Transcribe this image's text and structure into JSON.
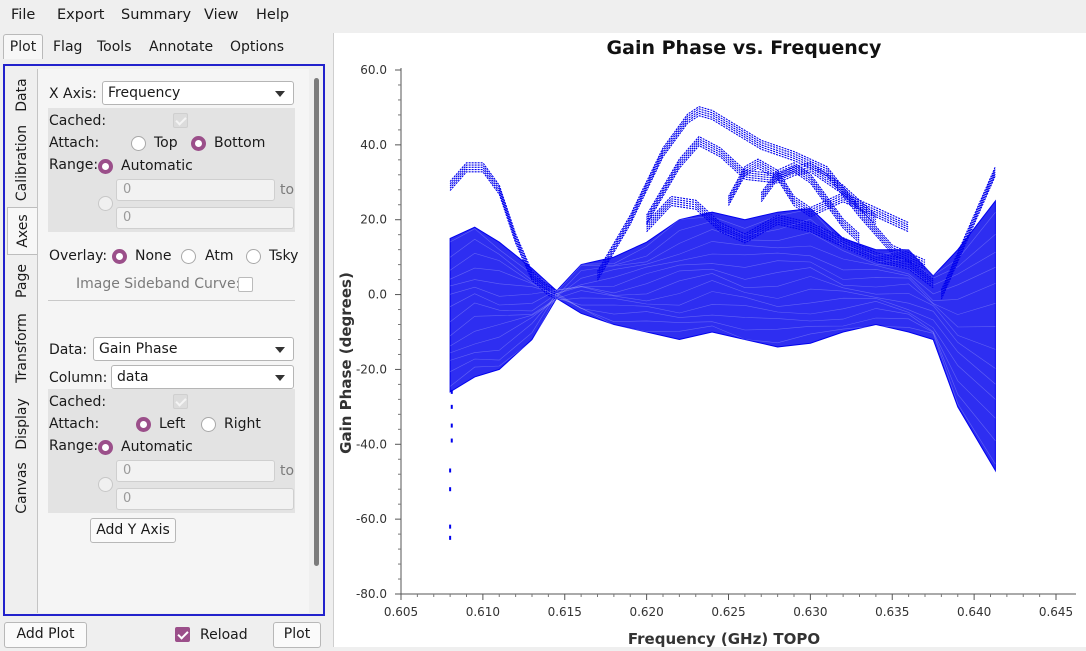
{
  "menubar": {
    "items": [
      "File",
      "Export",
      "Summary",
      "View",
      "Help"
    ]
  },
  "toptabs": [
    "Plot",
    "Flag",
    "Tools",
    "Annotate",
    "Options"
  ],
  "vtabs": [
    "Data",
    "Calibration",
    "Axes",
    "Page",
    "Transform",
    "Display",
    "Canvas"
  ],
  "xaxis": {
    "label": "X Axis:",
    "value": "Frequency",
    "cached": "Cached:",
    "attach": "Attach:",
    "top": "Top",
    "bottom": "Bottom",
    "range": "Range:",
    "automatic": "Automatic",
    "min": "0",
    "max": "0",
    "to": "to"
  },
  "overlay": {
    "label": "Overlay:",
    "none": "None",
    "atm": "Atm",
    "tsky": "Tsky",
    "sideband": "Image Sideband Curve:"
  },
  "yaxis": {
    "data_label": "Data:",
    "data_value": "Gain Phase",
    "column_label": "Column:",
    "column_value": "data",
    "cached": "Cached:",
    "attach": "Attach:",
    "left": "Left",
    "right": "Right",
    "range": "Range:",
    "automatic": "Automatic",
    "min": "0",
    "max": "0",
    "to": "to",
    "add_button": "Add Y Axis"
  },
  "bottom": {
    "add_plot": "Add Plot",
    "reload": "Reload",
    "plot": "Plot"
  },
  "chart_data": {
    "type": "scatter",
    "title": "Gain Phase vs. Frequency",
    "xlabel": "Frequency (GHz) TOPO",
    "ylabel": "Gain Phase (degrees)",
    "xlim": [
      0.605,
      0.645
    ],
    "ylim": [
      -80,
      60
    ],
    "xticks": [
      "0.605",
      "0.610",
      "0.615",
      "0.620",
      "0.625",
      "0.630",
      "0.635",
      "0.640",
      "0.645"
    ],
    "yticks": [
      "60.0",
      "40.0",
      "20.0",
      "0.0",
      "-20.0",
      "-40.0",
      "-60.0",
      "-80.0"
    ],
    "color": "#0000ee",
    "envelope": {
      "x": [
        0.608,
        0.6095,
        0.611,
        0.613,
        0.6145,
        0.616,
        0.618,
        0.62,
        0.622,
        0.624,
        0.626,
        0.628,
        0.63,
        0.632,
        0.634,
        0.636,
        0.6375,
        0.639,
        0.6413
      ],
      "upper": [
        15,
        18,
        14,
        7,
        1,
        8,
        10,
        14,
        20,
        22,
        20,
        22,
        23,
        15,
        12,
        12,
        5,
        12,
        25
      ],
      "lower": [
        -26,
        -22,
        -20,
        -12,
        -1,
        -5,
        -8,
        -10,
        -12,
        -10,
        -12,
        -14,
        -13,
        -10,
        -8,
        -10,
        -12,
        -30,
        -47
      ]
    },
    "traces": [
      {
        "x": [
          0.608,
          0.609,
          0.61,
          0.611,
          0.612,
          0.613,
          0.614,
          0.6145
        ],
        "y": [
          29,
          34,
          34,
          28,
          15,
          5,
          1,
          0
        ]
      },
      {
        "x": [
          0.617,
          0.619,
          0.621,
          0.6225,
          0.6232,
          0.624,
          0.6255,
          0.627,
          0.629,
          0.631,
          0.633,
          0.635,
          0.637
        ],
        "y": [
          5,
          20,
          38,
          47,
          49,
          48,
          44,
          40,
          37,
          33,
          22,
          12,
          8
        ]
      },
      {
        "x": [
          0.62,
          0.622,
          0.6232,
          0.6245,
          0.626,
          0.628,
          0.629,
          0.63,
          0.632,
          0.634
        ],
        "y": [
          20,
          35,
          41,
          38,
          32,
          31,
          33,
          34,
          28,
          20
        ]
      },
      {
        "x": [
          0.625,
          0.626,
          0.6268,
          0.628,
          0.629,
          0.63,
          0.632,
          0.634,
          0.636
        ],
        "y": [
          25,
          33,
          35,
          32,
          25,
          22,
          26,
          22,
          18
        ]
      },
      {
        "x": [
          0.627,
          0.628,
          0.629,
          0.63,
          0.631,
          0.632,
          0.633
        ],
        "y": [
          26,
          32,
          34,
          31,
          25,
          19,
          15
        ]
      },
      {
        "x": [
          0.62,
          0.6215,
          0.623,
          0.6245,
          0.626,
          0.628,
          0.63,
          0.632,
          0.634,
          0.636,
          0.6375
        ],
        "y": [
          18,
          25,
          24,
          18,
          15,
          20,
          18,
          14,
          10,
          8,
          3
        ]
      },
      {
        "x": [
          0.638,
          0.639,
          0.64,
          0.6413
        ],
        "y": [
          0,
          10,
          20,
          33
        ]
      }
    ],
    "outliers": [
      {
        "x": 0.6081,
        "y": -26
      },
      {
        "x": 0.6081,
        "y": -30
      },
      {
        "x": 0.6081,
        "y": -35
      },
      {
        "x": 0.6081,
        "y": -39
      },
      {
        "x": 0.608,
        "y": -47
      },
      {
        "x": 0.608,
        "y": -52
      },
      {
        "x": 0.608,
        "y": -62
      },
      {
        "x": 0.608,
        "y": -65
      }
    ]
  }
}
